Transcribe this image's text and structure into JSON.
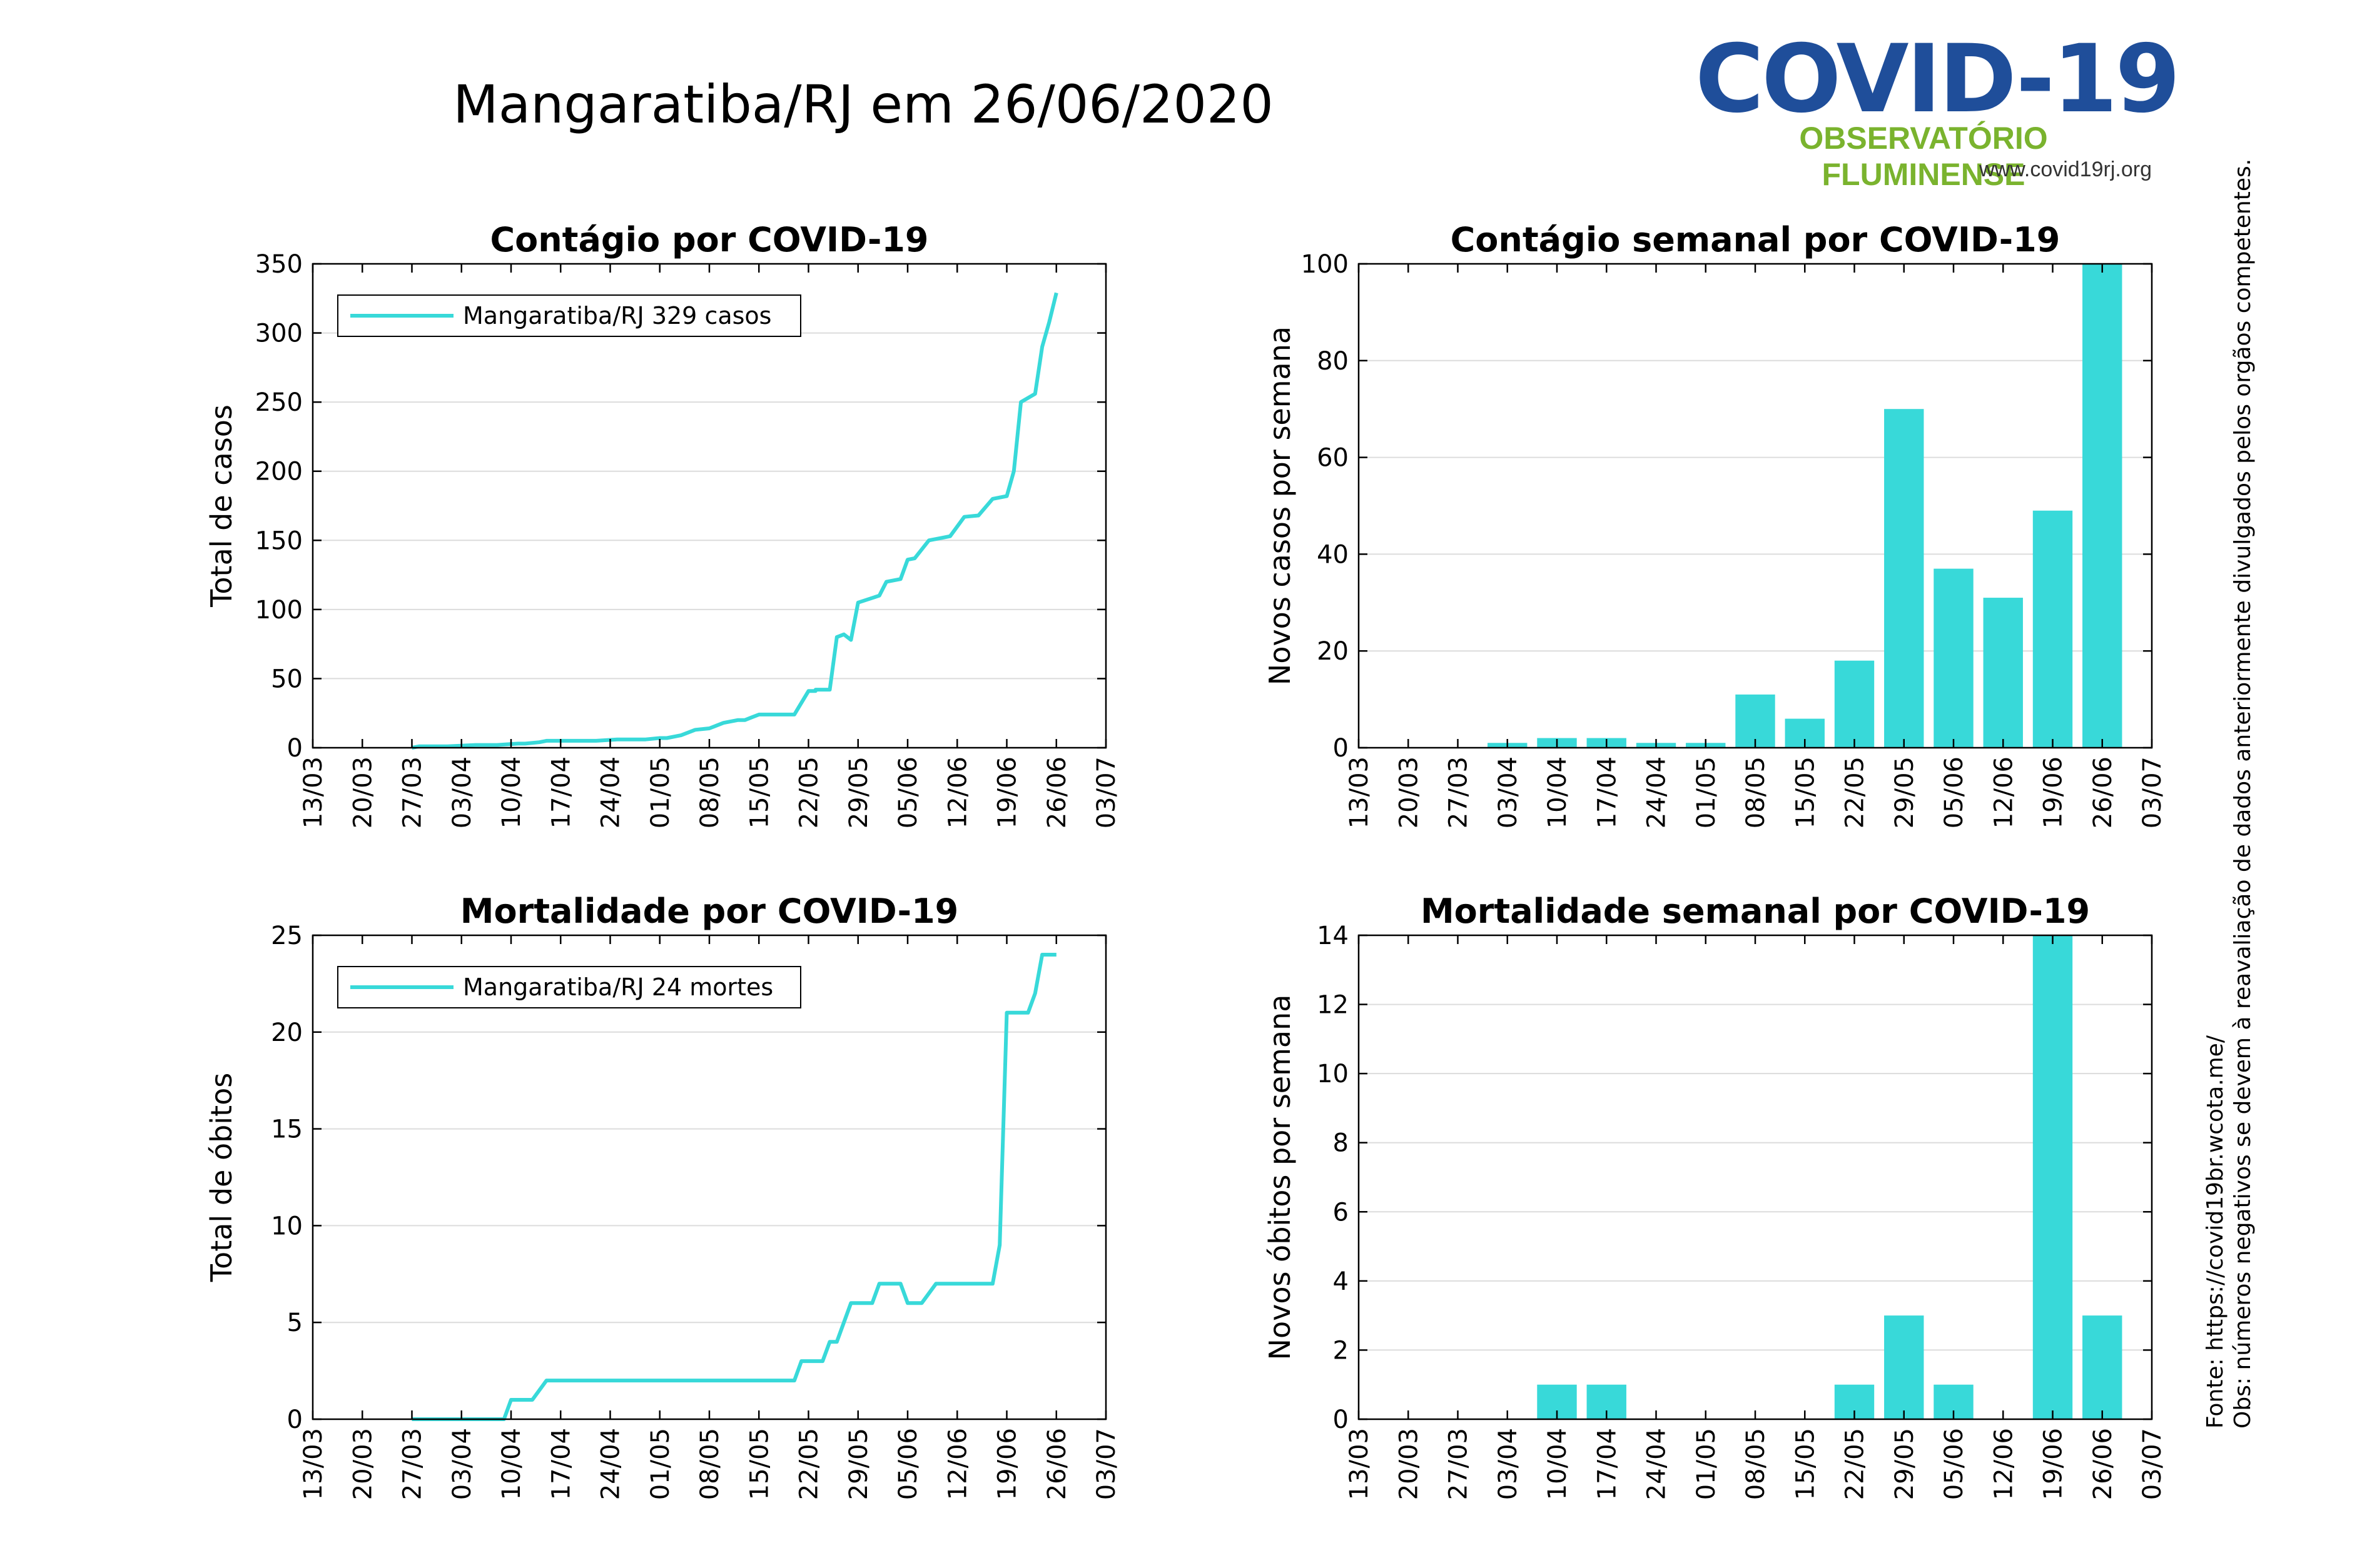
{
  "page": {
    "title": "Mangaratiba/RJ em 26/06/2020",
    "logo": {
      "main": "COVID-19",
      "sub": "OBSERVATÓRIO FLUMINENSE",
      "url": "www.covid19rj.org"
    },
    "note_source": "Fonte: https://covid19br.wcota.me/",
    "note_obs": "Obs: números negativos se devem à reavaliação de dados anteriormente divulgados pelos orgãos competentes."
  },
  "colors": {
    "series": "#38d9d9",
    "grid": "#dcdcdc",
    "logo_blue": "#1f4e9a",
    "logo_green": "#7ab32e"
  },
  "chart_data": [
    {
      "id": "cases-cumulative",
      "type": "line",
      "title": "Contágio por COVID-19",
      "ylabel": "Total de casos",
      "ylim": [
        0,
        350
      ],
      "yticks": [
        0,
        50,
        100,
        150,
        200,
        250,
        300,
        350
      ],
      "xticks": [
        "13/03",
        "20/03",
        "27/03",
        "03/04",
        "10/04",
        "17/04",
        "24/04",
        "01/05",
        "08/05",
        "15/05",
        "22/05",
        "29/05",
        "05/06",
        "12/06",
        "19/06",
        "26/06",
        "03/07"
      ],
      "legend": "Mangaratiba/RJ  329 casos",
      "legend_position": "top-left",
      "grid": true,
      "series": [
        {
          "x": [
            "27/03",
            "28/03",
            "01/04",
            "05/04",
            "08/04",
            "11/04",
            "12/04",
            "14/04",
            "15/04",
            "20/04",
            "22/04",
            "25/04",
            "29/04",
            "01/05",
            "02/05",
            "04/05",
            "06/05",
            "08/05",
            "10/05",
            "12/05",
            "13/05",
            "14/05",
            "15/05",
            "19/05",
            "20/05",
            "22/05",
            "23/05",
            "23/05",
            "25/05",
            "26/05",
            "27/05",
            "28/05",
            "29/05",
            "01/06",
            "02/06",
            "04/06",
            "05/06",
            "06/06",
            "08/06",
            "10/06",
            "11/06",
            "13/06",
            "15/06",
            "17/06",
            "19/06",
            "20/06",
            "21/06",
            "23/06",
            "24/06",
            "25/06",
            "26/06"
          ],
          "y": [
            0,
            1,
            1,
            2,
            2,
            3,
            3,
            4,
            5,
            5,
            5,
            6,
            6,
            7,
            7,
            9,
            13,
            14,
            18,
            20,
            20,
            22,
            24,
            24,
            24,
            41,
            41,
            42,
            42,
            80,
            82,
            78,
            105,
            110,
            120,
            122,
            136,
            137,
            150,
            152,
            153,
            167,
            168,
            180,
            182,
            200,
            250,
            256,
            290,
            308,
            329
          ]
        }
      ]
    },
    {
      "id": "cases-weekly",
      "type": "bar",
      "title": "Contágio semanal por COVID-19",
      "ylabel": "Novos casos por semana",
      "ylim": [
        0,
        100
      ],
      "yticks": [
        0,
        20,
        40,
        60,
        80,
        100
      ],
      "xticks": [
        "13/03",
        "20/03",
        "27/03",
        "03/04",
        "10/04",
        "17/04",
        "24/04",
        "01/05",
        "08/05",
        "15/05",
        "22/05",
        "29/05",
        "05/06",
        "12/06",
        "19/06",
        "26/06",
        "03/07"
      ],
      "grid": true,
      "categories": [
        "03/04",
        "10/04",
        "17/04",
        "24/04",
        "01/05",
        "08/05",
        "15/05",
        "22/05",
        "29/05",
        "05/06",
        "12/06",
        "19/06",
        "26/06"
      ],
      "values": [
        1,
        2,
        2,
        1,
        1,
        11,
        6,
        18,
        70,
        37,
        31,
        49,
        100
      ]
    },
    {
      "id": "deaths-cumulative",
      "type": "line",
      "title": "Mortalidade por COVID-19",
      "ylabel": "Total de óbitos",
      "ylim": [
        0,
        25
      ],
      "yticks": [
        0,
        5,
        10,
        15,
        20,
        25
      ],
      "xticks": [
        "13/03",
        "20/03",
        "27/03",
        "03/04",
        "10/04",
        "17/04",
        "24/04",
        "01/05",
        "08/05",
        "15/05",
        "22/05",
        "29/05",
        "05/06",
        "12/06",
        "19/06",
        "26/06",
        "03/07"
      ],
      "legend": "Mangaratiba/RJ  24 mortes",
      "legend_position": "top-left",
      "grid": true,
      "series": [
        {
          "x": [
            "27/03",
            "09/04",
            "10/04",
            "13/04",
            "15/04",
            "20/05",
            "21/05",
            "24/05",
            "25/05",
            "26/05",
            "28/05",
            "29/05",
            "31/05",
            "01/06",
            "02/06",
            "04/06",
            "05/06",
            "07/06",
            "09/06",
            "10/06",
            "12/06",
            "17/06",
            "18/06",
            "19/06",
            "20/06",
            "22/06",
            "23/06",
            "24/06",
            "26/06"
          ],
          "y": [
            0,
            0,
            1,
            1,
            2,
            2,
            3,
            3,
            4,
            4,
            6,
            6,
            6,
            7,
            7,
            7,
            6,
            6,
            7,
            7,
            7,
            7,
            9,
            21,
            21,
            21,
            22,
            24,
            24
          ]
        }
      ]
    },
    {
      "id": "deaths-weekly",
      "type": "bar",
      "title": "Mortalidade semanal por COVID-19",
      "ylabel": "Novos óbitos por semana",
      "ylim": [
        0,
        14
      ],
      "yticks": [
        0,
        2,
        4,
        6,
        8,
        10,
        12,
        14
      ],
      "xticks": [
        "13/03",
        "20/03",
        "27/03",
        "03/04",
        "10/04",
        "17/04",
        "24/04",
        "01/05",
        "08/05",
        "15/05",
        "22/05",
        "29/05",
        "05/06",
        "12/06",
        "19/06",
        "26/06",
        "03/07"
      ],
      "grid": true,
      "categories": [
        "10/04",
        "17/04",
        "22/05",
        "29/05",
        "05/06",
        "19/06",
        "26/06"
      ],
      "values": [
        1,
        1,
        1,
        3,
        1,
        14,
        3
      ]
    }
  ]
}
